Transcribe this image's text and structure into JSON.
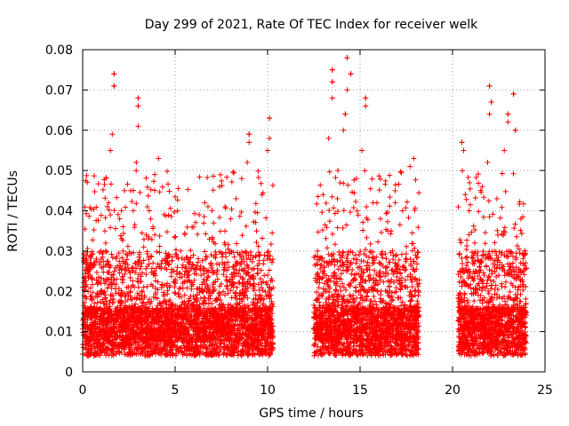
{
  "chart_data": {
    "type": "scatter",
    "title": "Day 299 of 2021, Rate Of TEC Index for receiver welk",
    "xlabel": "GPS time / hours",
    "ylabel": "ROTI / TECUs",
    "xlim": [
      0,
      25
    ],
    "ylim": [
      0,
      0.08
    ],
    "xticks": [
      0,
      5,
      10,
      15,
      20,
      25
    ],
    "yticks": [
      0,
      0.01,
      0.02,
      0.03,
      0.04,
      0.05,
      0.06,
      0.07,
      0.08
    ],
    "xtick_labels": [
      "0",
      "5",
      "10",
      "15",
      "20",
      "25"
    ],
    "ytick_labels": [
      "0",
      "0.01",
      "0.02",
      "0.03",
      "0.04",
      "0.05",
      "0.06",
      "0.07",
      "0.08"
    ],
    "grid": true,
    "marker": "+",
    "marker_color": "#ff0000",
    "data_segments": [
      {
        "x_range": [
          0.0,
          10.3
        ],
        "note_points": [
          [
            1.7,
            0.074
          ],
          [
            1.7,
            0.071
          ],
          [
            3.0,
            0.068
          ],
          [
            3.0,
            0.066
          ],
          [
            10.1,
            0.063
          ],
          [
            9.0,
            0.059
          ]
        ]
      },
      {
        "x_range": [
          12.5,
          18.2
        ],
        "note_points": [
          [
            14.3,
            0.078
          ],
          [
            13.5,
            0.075
          ],
          [
            14.5,
            0.074
          ],
          [
            13.5,
            0.072
          ],
          [
            15.3,
            0.068
          ],
          [
            14.2,
            0.064
          ]
        ]
      },
      {
        "x_range": [
          20.3,
          24.0
        ],
        "note_points": [
          [
            22.0,
            0.071
          ],
          [
            23.3,
            0.069
          ],
          [
            22.1,
            0.067
          ],
          [
            23.0,
            0.064
          ],
          [
            23.4,
            0.06
          ],
          [
            20.5,
            0.057
          ]
        ]
      }
    ],
    "series": [
      {
        "values": [
          [
            0.2,
            0.009
          ],
          [
            0.5,
            0.018
          ],
          [
            0.8,
            0.012
          ],
          [
            1.0,
            0.028
          ],
          [
            1.2,
            0.035
          ],
          [
            1.4,
            0.042
          ],
          [
            1.5,
            0.055
          ],
          [
            1.6,
            0.059
          ],
          [
            1.7,
            0.071
          ],
          [
            1.7,
            0.074
          ],
          [
            2.0,
            0.038
          ],
          [
            2.3,
            0.026
          ],
          [
            2.6,
            0.045
          ],
          [
            2.9,
            0.052
          ],
          [
            3.0,
            0.061
          ],
          [
            3.0,
            0.066
          ],
          [
            3.0,
            0.068
          ],
          [
            3.3,
            0.031
          ],
          [
            3.6,
            0.04
          ],
          [
            3.9,
            0.049
          ],
          [
            4.1,
            0.053
          ],
          [
            4.5,
            0.027
          ],
          [
            5.0,
            0.022
          ],
          [
            5.3,
            0.03
          ],
          [
            5.7,
            0.024
          ],
          [
            6.0,
            0.036
          ],
          [
            6.3,
            0.039
          ],
          [
            6.6,
            0.042
          ],
          [
            7.0,
            0.033
          ],
          [
            7.4,
            0.046
          ],
          [
            7.7,
            0.041
          ],
          [
            8.0,
            0.038
          ],
          [
            8.3,
            0.043
          ],
          [
            8.6,
            0.048
          ],
          [
            8.9,
            0.052
          ],
          [
            9.0,
            0.057
          ],
          [
            9.0,
            0.059
          ],
          [
            9.4,
            0.035
          ],
          [
            9.7,
            0.044
          ],
          [
            10.0,
            0.055
          ],
          [
            10.1,
            0.058
          ],
          [
            10.1,
            0.063
          ],
          [
            12.7,
            0.03
          ],
          [
            13.0,
            0.044
          ],
          [
            13.3,
            0.058
          ],
          [
            13.5,
            0.068
          ],
          [
            13.5,
            0.072
          ],
          [
            13.5,
            0.075
          ],
          [
            13.8,
            0.05
          ],
          [
            14.1,
            0.06
          ],
          [
            14.2,
            0.064
          ],
          [
            14.3,
            0.07
          ],
          [
            14.3,
            0.078
          ],
          [
            14.5,
            0.074
          ],
          [
            14.8,
            0.048
          ],
          [
            15.1,
            0.055
          ],
          [
            15.3,
            0.066
          ],
          [
            15.3,
            0.068
          ],
          [
            15.7,
            0.042
          ],
          [
            16.1,
            0.038
          ],
          [
            16.5,
            0.035
          ],
          [
            16.9,
            0.045
          ],
          [
            17.3,
            0.04
          ],
          [
            17.7,
            0.051
          ],
          [
            17.9,
            0.053
          ],
          [
            18.0,
            0.029
          ],
          [
            20.5,
            0.057
          ],
          [
            20.6,
            0.055
          ],
          [
            20.9,
            0.04
          ],
          [
            21.2,
            0.032
          ],
          [
            21.6,
            0.046
          ],
          [
            21.9,
            0.052
          ],
          [
            22.0,
            0.064
          ],
          [
            22.0,
            0.071
          ],
          [
            22.1,
            0.067
          ],
          [
            22.4,
            0.043
          ],
          [
            22.8,
            0.055
          ],
          [
            23.0,
            0.062
          ],
          [
            23.0,
            0.064
          ],
          [
            23.3,
            0.069
          ],
          [
            23.4,
            0.06
          ],
          [
            23.7,
            0.038
          ],
          [
            23.9,
            0.029
          ]
        ]
      }
    ]
  }
}
